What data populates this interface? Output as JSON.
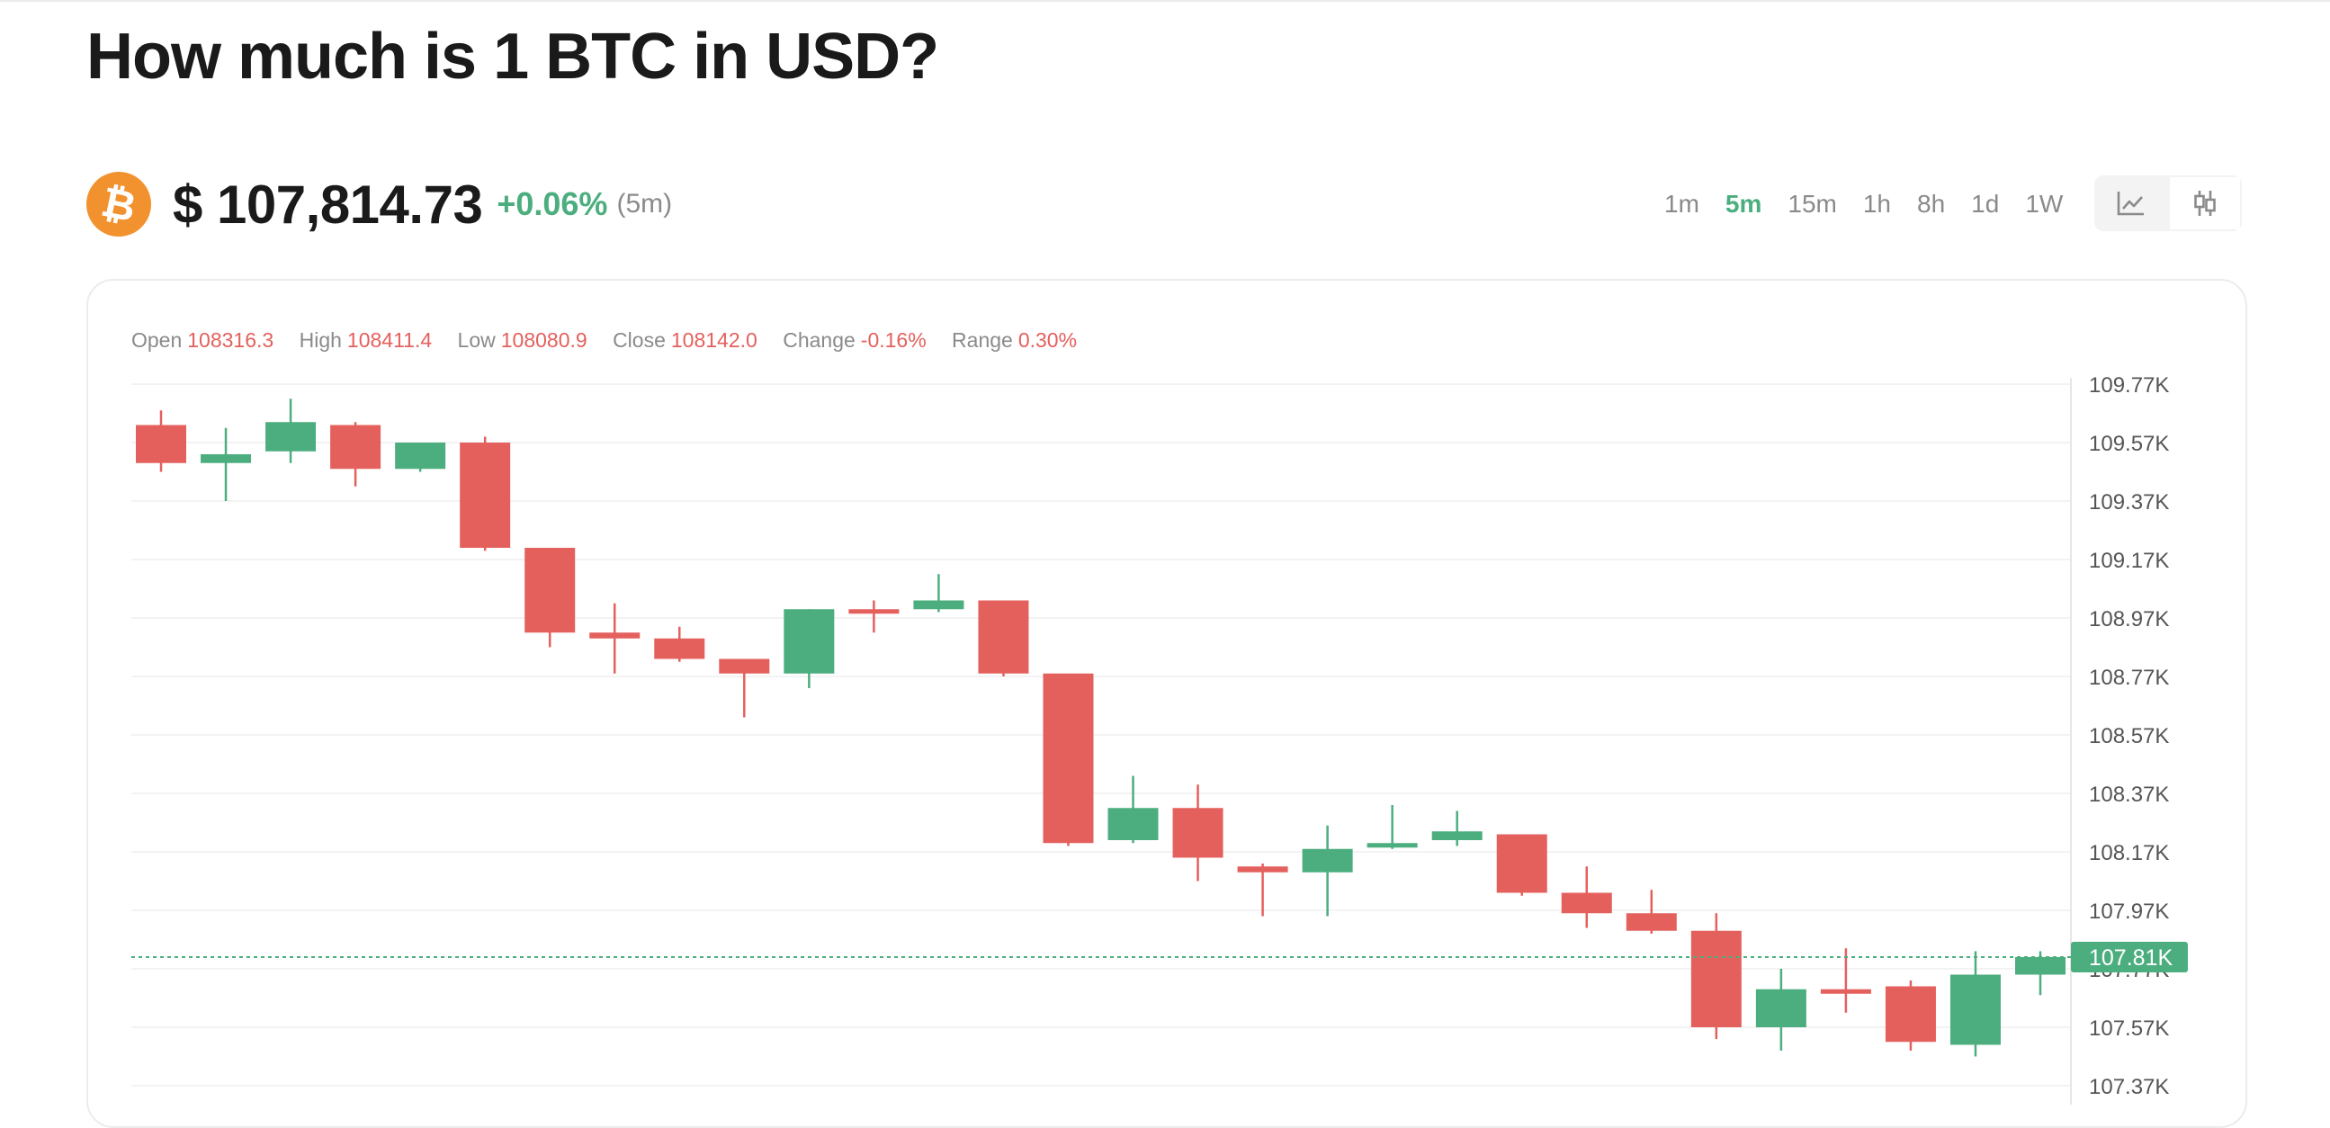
{
  "page": {
    "title": "How much is 1 BTC in USD?"
  },
  "ticker": {
    "coin_symbol": "₿",
    "price": "$ 107,814.73",
    "change": "+0.06%",
    "interval": "(5m)"
  },
  "timeframes": [
    {
      "label": "1m",
      "active": false
    },
    {
      "label": "5m",
      "active": true
    },
    {
      "label": "15m",
      "active": false
    },
    {
      "label": "1h",
      "active": false
    },
    {
      "label": "8h",
      "active": false
    },
    {
      "label": "1d",
      "active": false
    },
    {
      "label": "1W",
      "active": false
    }
  ],
  "view_toggle": {
    "options": [
      "line-chart-icon",
      "candlestick-icon"
    ],
    "selected": "candlestick-icon"
  },
  "ohlc": {
    "open_label": "Open",
    "open": "108316.3",
    "high_label": "High",
    "high": "108411.4",
    "low_label": "Low",
    "low": "108080.9",
    "close_label": "Close",
    "close": "108142.0",
    "change_label": "Change",
    "change": "-0.16%",
    "range_label": "Range",
    "range": "0.30%"
  },
  "colors": {
    "up": "#4cae7f",
    "down": "#e4605d",
    "accent": "#4cae7f",
    "coin": "#f2922f"
  },
  "chart_data": {
    "type": "candlestick",
    "unit": "USD (K)",
    "ylim": [
      107.37,
      109.77
    ],
    "y_ticks": [
      109.77,
      109.57,
      109.37,
      109.17,
      108.97,
      108.77,
      108.57,
      108.37,
      108.17,
      107.97,
      107.77,
      107.57,
      107.37
    ],
    "y_tick_labels": [
      "109.77K",
      "109.57K",
      "109.37K",
      "109.17K",
      "108.97K",
      "108.77K",
      "108.57K",
      "108.37K",
      "108.17K",
      "107.97K",
      "107.77K",
      "107.57K",
      "107.37K"
    ],
    "current_price": 107.81,
    "current_price_label": "107.81K",
    "grid": true,
    "candles": [
      {
        "o": 109.63,
        "h": 109.68,
        "l": 109.47,
        "c": 109.5
      },
      {
        "o": 109.5,
        "h": 109.62,
        "l": 109.37,
        "c": 109.53
      },
      {
        "o": 109.54,
        "h": 109.72,
        "l": 109.5,
        "c": 109.64
      },
      {
        "o": 109.63,
        "h": 109.64,
        "l": 109.42,
        "c": 109.48
      },
      {
        "o": 109.48,
        "h": 109.57,
        "l": 109.47,
        "c": 109.57
      },
      {
        "o": 109.57,
        "h": 109.59,
        "l": 109.2,
        "c": 109.21
      },
      {
        "o": 109.21,
        "h": 109.21,
        "l": 108.87,
        "c": 108.92
      },
      {
        "o": 108.92,
        "h": 109.02,
        "l": 108.78,
        "c": 108.9
      },
      {
        "o": 108.9,
        "h": 108.94,
        "l": 108.82,
        "c": 108.83
      },
      {
        "o": 108.83,
        "h": 108.83,
        "l": 108.63,
        "c": 108.78
      },
      {
        "o": 108.78,
        "h": 109.0,
        "l": 108.73,
        "c": 109.0
      },
      {
        "o": 109.0,
        "h": 109.03,
        "l": 108.92,
        "c": 108.99
      },
      {
        "o": 109.0,
        "h": 109.12,
        "l": 108.99,
        "c": 109.03
      },
      {
        "o": 109.03,
        "h": 109.03,
        "l": 108.77,
        "c": 108.78
      },
      {
        "o": 108.78,
        "h": 108.77,
        "l": 108.19,
        "c": 108.2
      },
      {
        "o": 108.21,
        "h": 108.43,
        "l": 108.2,
        "c": 108.32
      },
      {
        "o": 108.32,
        "h": 108.4,
        "l": 108.07,
        "c": 108.15
      },
      {
        "o": 108.12,
        "h": 108.13,
        "l": 107.95,
        "c": 108.1
      },
      {
        "o": 108.1,
        "h": 108.26,
        "l": 107.95,
        "c": 108.18
      },
      {
        "o": 108.19,
        "h": 108.33,
        "l": 108.18,
        "c": 108.2
      },
      {
        "o": 108.21,
        "h": 108.31,
        "l": 108.19,
        "c": 108.24
      },
      {
        "o": 108.23,
        "h": 108.23,
        "l": 108.02,
        "c": 108.03
      },
      {
        "o": 108.03,
        "h": 108.12,
        "l": 107.91,
        "c": 107.96
      },
      {
        "o": 107.96,
        "h": 108.04,
        "l": 107.89,
        "c": 107.9
      },
      {
        "o": 107.9,
        "h": 107.96,
        "l": 107.53,
        "c": 107.57
      },
      {
        "o": 107.57,
        "h": 107.77,
        "l": 107.49,
        "c": 107.7
      },
      {
        "o": 107.7,
        "h": 107.84,
        "l": 107.62,
        "c": 107.69
      },
      {
        "o": 107.71,
        "h": 107.73,
        "l": 107.49,
        "c": 107.52
      },
      {
        "o": 107.51,
        "h": 107.83,
        "l": 107.47,
        "c": 107.75
      },
      {
        "o": 107.75,
        "h": 107.83,
        "l": 107.68,
        "c": 107.81
      }
    ]
  }
}
